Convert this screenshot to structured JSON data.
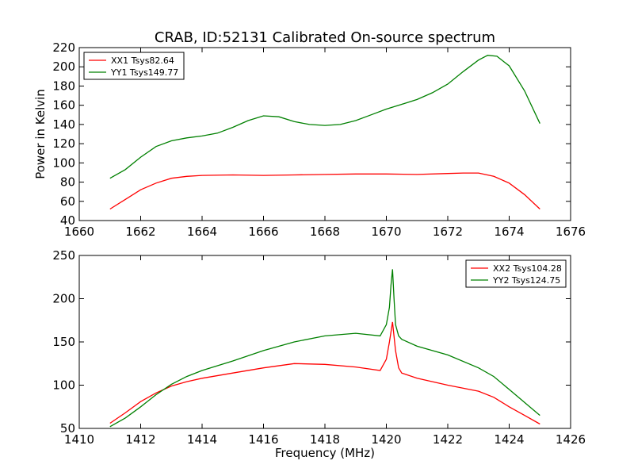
{
  "chart_data": [
    {
      "type": "line",
      "title": "CRAB, ID:52131 Calibrated On-source spectrum",
      "xlabel": "",
      "ylabel": "Power in Kelvin",
      "xlim": [
        1660,
        1676
      ],
      "ylim": [
        40,
        220
      ],
      "xticks": [
        1660,
        1662,
        1664,
        1666,
        1668,
        1670,
        1672,
        1674,
        1676
      ],
      "yticks": [
        40,
        60,
        80,
        100,
        120,
        140,
        160,
        180,
        200,
        220
      ],
      "grid": false,
      "legend": "top-left",
      "series": [
        {
          "name": "XX1 Tsys82.64",
          "color": "#ff0000",
          "x": [
            1661.0,
            1661.5,
            1662.0,
            1662.5,
            1663.0,
            1663.5,
            1664.0,
            1665.0,
            1666.0,
            1667.0,
            1668.0,
            1669.0,
            1670.0,
            1671.0,
            1672.0,
            1672.5,
            1673.0,
            1673.5,
            1674.0,
            1674.5,
            1675.0
          ],
          "y": [
            52,
            62,
            72,
            79,
            84,
            86,
            87,
            87.5,
            87,
            87.5,
            88,
            88.5,
            88.5,
            88,
            89,
            89.5,
            89.5,
            86,
            79,
            67,
            52
          ]
        },
        {
          "name": "YY1 Tsys149.77",
          "color": "#008000",
          "x": [
            1661.0,
            1661.5,
            1662.0,
            1662.5,
            1663.0,
            1663.5,
            1664.0,
            1664.5,
            1665.0,
            1665.5,
            1666.0,
            1666.5,
            1667.0,
            1667.5,
            1668.0,
            1668.5,
            1669.0,
            1669.5,
            1670.0,
            1670.5,
            1671.0,
            1671.5,
            1672.0,
            1672.5,
            1673.0,
            1673.3,
            1673.6,
            1674.0,
            1674.5,
            1675.0
          ],
          "y": [
            84,
            93,
            106,
            117,
            123,
            126,
            128,
            131,
            137,
            144,
            149,
            148,
            143,
            140,
            139,
            140,
            144,
            150,
            156,
            161,
            166,
            173,
            182,
            195,
            207,
            212,
            211,
            201,
            175,
            141
          ]
        }
      ]
    },
    {
      "type": "line",
      "title": "",
      "xlabel": "Frequency (MHz)",
      "ylabel": "",
      "xlim": [
        1410,
        1426
      ],
      "ylim": [
        50,
        250
      ],
      "xticks": [
        1410,
        1412,
        1414,
        1416,
        1418,
        1420,
        1422,
        1424,
        1426
      ],
      "yticks": [
        50,
        100,
        150,
        200,
        250
      ],
      "grid": false,
      "legend": "top-right",
      "series": [
        {
          "name": "XX2 Tsys104.28",
          "color": "#ff0000",
          "x": [
            1411.0,
            1411.5,
            1412.0,
            1412.5,
            1413.0,
            1413.5,
            1414.0,
            1415.0,
            1416.0,
            1417.0,
            1418.0,
            1419.0,
            1419.8,
            1420.0,
            1420.1,
            1420.2,
            1420.3,
            1420.4,
            1420.5,
            1421.0,
            1422.0,
            1423.0,
            1423.5,
            1424.0,
            1424.5,
            1425.0
          ],
          "y": [
            56,
            68,
            81,
            91,
            99,
            104,
            108,
            114,
            120,
            125,
            124,
            121,
            117,
            130,
            150,
            173,
            140,
            120,
            114,
            108,
            100,
            93,
            86,
            75,
            65,
            55
          ]
        },
        {
          "name": "YY2 Tsys124.75",
          "color": "#008000",
          "x": [
            1411.0,
            1411.5,
            1412.0,
            1412.5,
            1413.0,
            1413.5,
            1414.0,
            1415.0,
            1416.0,
            1417.0,
            1418.0,
            1419.0,
            1419.8,
            1420.0,
            1420.1,
            1420.15,
            1420.2,
            1420.25,
            1420.3,
            1420.4,
            1420.5,
            1421.0,
            1422.0,
            1423.0,
            1423.5,
            1424.0,
            1424.5,
            1425.0
          ],
          "y": [
            52,
            62,
            75,
            89,
            101,
            110,
            117,
            128,
            140,
            150,
            157,
            160,
            157,
            170,
            190,
            215,
            234,
            200,
            170,
            157,
            153,
            145,
            135,
            120,
            110,
            95,
            80,
            65
          ]
        }
      ]
    }
  ]
}
